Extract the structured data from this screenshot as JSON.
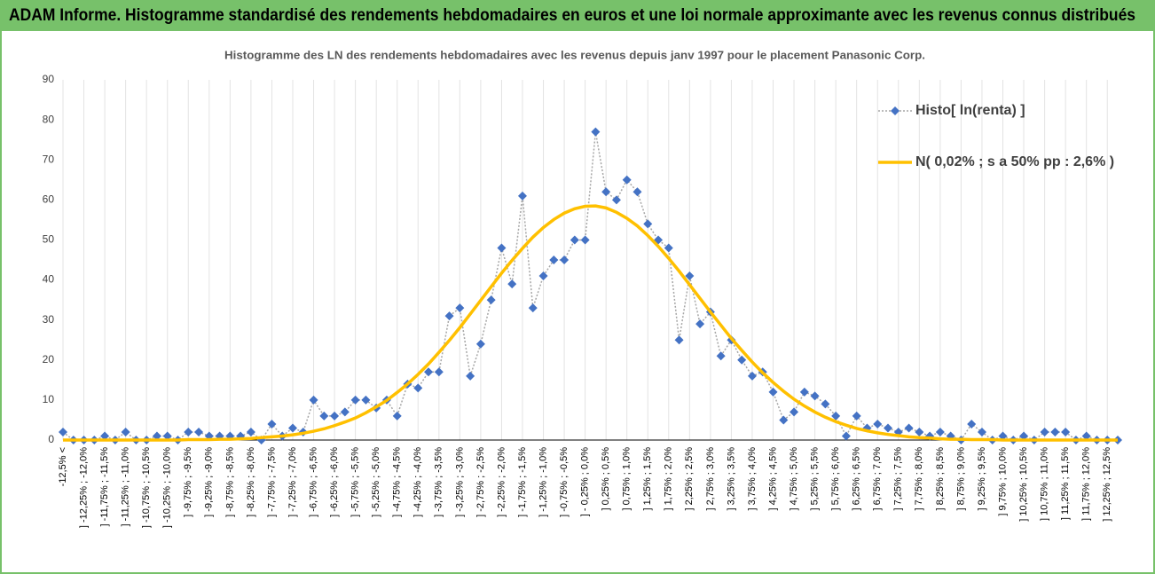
{
  "header": {
    "title": "ADAM Informe. Histogramme standardisé des rendements hebdomadaires en euros et une loi normale approximante avec les revenus connus distribués"
  },
  "chart_data": {
    "type": "line",
    "title": "Histogramme des LN des rendements hebdomadaires avec les revenus depuis janv 1997 pour le placement Panasonic Corp.",
    "categories": [
      "-12,5% <",
      null,
      "] -12,25% ; -12,0%",
      null,
      "] -11,75% ; -11,5%",
      null,
      "] -11,25% ; -11,0%",
      null,
      "] -10,75% ; -10,5%",
      null,
      "] -10,25% ; -10,0%",
      null,
      "] -9,75% ; -9,5%",
      null,
      "] -9,25% ; -9,0%",
      null,
      "] -8,75% ; -8,5%",
      null,
      "] -8,25% ; -8,0%",
      null,
      "] -7,75% ; -7,5%",
      null,
      "] -7,25% ; -7,0%",
      null,
      "] -6,75% ; -6,5%",
      null,
      "] -6,25% ; -6,0%",
      null,
      "] -5,75% ; -5,5%",
      null,
      "] -5,25% ; -5,0%",
      null,
      "] -4,75% ; -4,5%",
      null,
      "] -4,25% ; -4,0%",
      null,
      "] -3,75% ; -3,5%",
      null,
      "] -3,25% ; -3,0%",
      null,
      "] -2,75% ; -2,5%",
      null,
      "] -2,25% ; -2,0%",
      null,
      "] -1,75% ; -1,5%",
      null,
      "] -1,25% ; -1,0%",
      null,
      "] -0,75% ; -0,5%",
      null,
      "] - 0,25% ; 0,0%",
      null,
      "] 0,25% ; 0,5%",
      null,
      "] 0,75% ; 1,0%",
      null,
      "] 1,25% ; 1,5%",
      null,
      "] 1,75% ; 2,0%",
      null,
      "] 2,25% ; 2,5%",
      null,
      "] 2,75% ; 3,0%",
      null,
      "] 3,25% ; 3,5%",
      null,
      "] 3,75% ; 4,0%",
      null,
      "] 4,25% ; 4,5%",
      null,
      "] 4,75% ; 5,0%",
      null,
      "] 5,25% ; 5,5%",
      null,
      "] 5,75% ; 6,0%",
      null,
      "] 6,25% ; 6,5%",
      null,
      "] 6,75% ; 7,0%",
      null,
      "] 7,25% ; 7,5%",
      null,
      "] 7,75% ; 8,0%",
      null,
      "] 8,25% ; 8,5%",
      null,
      "] 8,75% ; 9,0%",
      null,
      "] 9,25% ; 9,5%",
      null,
      "] 9,75% ; 10,0%",
      null,
      "] 10,25% ; 10,5%",
      null,
      "] 10,75% ; 11,0%",
      null,
      "] 11,25% ; 11,5%",
      null,
      "] 11,75% ; 12,0%",
      null,
      "] 12,25% ; 12,5%",
      null
    ],
    "series": [
      {
        "name": "Histo[ ln(renta) ]",
        "color": "#4472c4",
        "marker": "diamond",
        "line_style": "dotted",
        "line_color": "#a6a6a6",
        "values": [
          2,
          0,
          0,
          0,
          1,
          0,
          2,
          0,
          0,
          1,
          1,
          0,
          2,
          2,
          1,
          1,
          1,
          1,
          2,
          0,
          4,
          1,
          3,
          2,
          10,
          6,
          6,
          7,
          10,
          10,
          8,
          10,
          6,
          14,
          13,
          17,
          17,
          31,
          33,
          16,
          24,
          35,
          48,
          39,
          61,
          33,
          41,
          45,
          45,
          50,
          50,
          77,
          62,
          60,
          65,
          62,
          54,
          50,
          48,
          25,
          41,
          29,
          32,
          21,
          25,
          20,
          16,
          17,
          12,
          5,
          7,
          12,
          11,
          9,
          6,
          1,
          6,
          3,
          4,
          3,
          2,
          3,
          2,
          1,
          2,
          1,
          0,
          4,
          2,
          0,
          1,
          0,
          1,
          0,
          2,
          2,
          2,
          0,
          1,
          0,
          0,
          0
        ]
      },
      {
        "name": "N( 0,02% ; s a 50% pp : 2,6% )",
        "color": "#ffc000",
        "marker": null,
        "line_style": "solid",
        "values": [
          0,
          0,
          0,
          0,
          0,
          0,
          0,
          0,
          0,
          0,
          0,
          0,
          0.1,
          0.1,
          0.1,
          0.2,
          0.2,
          0.3,
          0.4,
          0.6,
          0.8,
          1.0,
          1.3,
          1.7,
          2.2,
          2.8,
          3.6,
          4.5,
          5.5,
          6.8,
          8.3,
          9.9,
          11.9,
          14.0,
          16.4,
          19.0,
          21.9,
          24.9,
          28.1,
          31.5,
          34.9,
          38.3,
          41.7,
          44.9,
          47.9,
          50.7,
          53.1,
          55.1,
          56.7,
          57.8,
          58.4,
          58.5,
          58.0,
          56.9,
          55.4,
          53.5,
          51.1,
          48.4,
          45.4,
          42.2,
          38.8,
          35.4,
          32.0,
          28.7,
          25.4,
          22.4,
          19.5,
          16.8,
          14.4,
          12.2,
          10.2,
          8.5,
          7.0,
          5.7,
          4.6,
          3.7,
          2.9,
          2.3,
          1.8,
          1.4,
          1.1,
          0.8,
          0.6,
          0.5,
          0.3,
          0.2,
          0.2,
          0.1,
          0.1,
          0.1,
          0,
          0,
          0,
          0,
          0,
          0,
          0,
          0,
          0,
          0,
          0,
          0
        ]
      }
    ],
    "ylim": [
      0,
      90
    ],
    "yticks": [
      0,
      10,
      20,
      30,
      40,
      50,
      60,
      70,
      80,
      90
    ],
    "grid": "x",
    "legend": "top-right"
  }
}
